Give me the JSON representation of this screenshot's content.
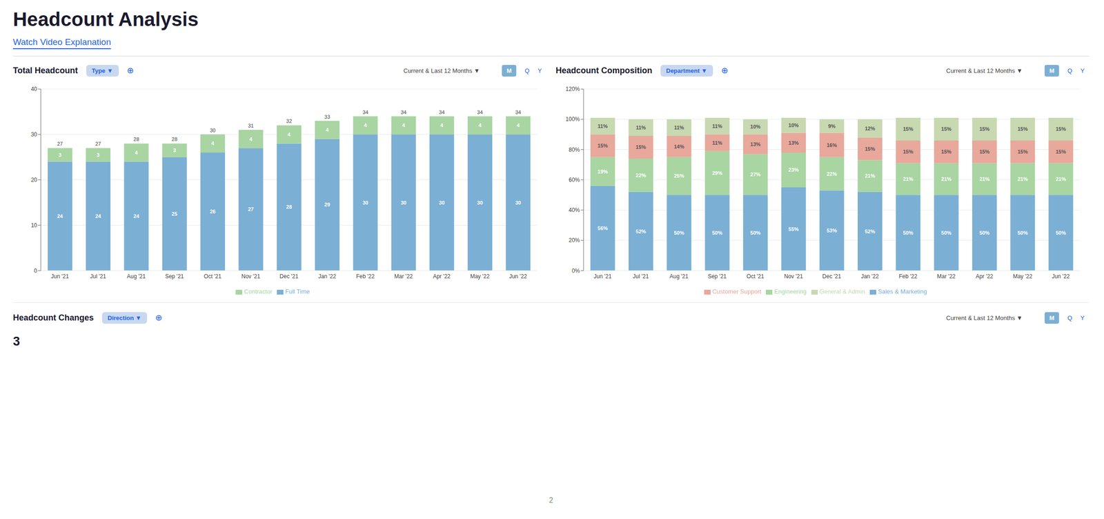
{
  "title": "Headcount Analysis",
  "subtitle": "Watch Video Explanation",
  "annotations": [
    "Headcount Changes",
    "Direction ▼",
    "⊕",
    "Current & Last 12 Months ▼",
    "M",
    "Q",
    "Y",
    "3",
    "2"
  ],
  "chart_data": [
    {
      "type": "bar",
      "title": "Total Headcount",
      "annotations": [
        "Type ▼",
        "⊕",
        "Current & Last 12 Months ▼",
        "M",
        "Q",
        "Y"
      ],
      "categories": [
        "Jun '21",
        "Jul '21",
        "Aug '21",
        "Sep '21",
        "Oct '21",
        "Nov '21",
        "Dec '21",
        "Jan '22",
        "Feb '22",
        "Mar '22",
        "Apr '22",
        "May '22",
        "Jun '22"
      ],
      "series": [
        {
          "name": "Full Time",
          "color": "#7bafd4",
          "values": [
            24,
            24,
            24,
            25,
            26,
            27,
            28,
            29,
            30,
            30,
            30,
            30,
            30
          ]
        },
        {
          "name": "Contractor",
          "color": "#a8d5a2",
          "values": [
            3,
            3,
            4,
            3,
            4,
            4,
            4,
            4,
            4,
            4,
            4,
            4,
            4
          ]
        }
      ],
      "totals": [
        27,
        27,
        28,
        28,
        30,
        31,
        32,
        33,
        34,
        34,
        34,
        34,
        34
      ],
      "stacked": true,
      "data_labels": true,
      "ylim": [
        0,
        40
      ],
      "yticks": [
        0,
        10,
        20,
        30,
        40
      ],
      "grid": true,
      "legend": "bottom"
    },
    {
      "type": "bar",
      "title": "Headcount Composition",
      "annotations": [
        "Department ▼",
        "⊕",
        "Current & Last 12 Months ▼",
        "M",
        "Q",
        "Y"
      ],
      "categories": [
        "Jun '21",
        "Jul '21",
        "Aug '21",
        "Sep '21",
        "Oct '21",
        "Nov '21",
        "Dec '21",
        "Jan '22",
        "Feb '22",
        "Mar '22",
        "Apr '22",
        "May '22",
        "Jun '22"
      ],
      "series": [
        {
          "name": "Sales & Marketing",
          "color": "#7bafd4",
          "values": [
            56,
            52,
            50,
            50,
            50,
            55,
            53,
            52,
            50,
            50,
            50,
            50,
            50
          ],
          "value_labels": [
            "56%",
            "52%",
            "50%",
            "50%",
            "50%",
            "55%",
            "53%",
            "52%",
            "50%",
            "50%",
            "50%",
            "50%",
            "50%"
          ]
        },
        {
          "name": "Engineering",
          "color": "#a8d5a2",
          "values": [
            19,
            22,
            25,
            29,
            27,
            23,
            22,
            21,
            21,
            21,
            21,
            21,
            21
          ],
          "value_labels": [
            "19%",
            "22%",
            "25%",
            "29%",
            "27%",
            "23%",
            "22%",
            "21%",
            "21%",
            "21%",
            "21%",
            "21%",
            "21%"
          ]
        },
        {
          "name": "Customer Support",
          "color": "#e8a89c",
          "values": [
            15,
            15,
            14,
            11,
            13,
            13,
            16,
            15,
            15,
            15,
            15,
            15,
            15
          ],
          "value_labels": [
            "15%",
            "15%",
            "14%",
            "11%",
            "13%",
            "13%",
            "16%",
            "15%",
            "15%",
            "15%",
            "15%",
            "15%",
            "15%"
          ]
        },
        {
          "name": "General & Admin",
          "color": "#c8d8b0",
          "values": [
            11,
            11,
            11,
            11,
            10,
            10,
            9,
            12,
            15,
            15,
            15,
            15,
            15
          ],
          "value_labels": [
            "11%",
            "11%",
            "11%",
            "11%",
            "10%",
            "10%",
            "9%",
            "12%",
            "15%",
            "15%",
            "15%",
            "15%",
            "15%"
          ]
        }
      ],
      "stacked": true,
      "data_labels": true,
      "ylim": [
        0,
        120
      ],
      "yticks": [
        {
          "value": 0,
          "label": "0%"
        },
        {
          "value": 20,
          "label": "20%"
        },
        {
          "value": 40,
          "label": "40%"
        },
        {
          "value": 60,
          "label": "60%"
        },
        {
          "value": 80,
          "label": "80%"
        },
        {
          "value": 100,
          "label": "100%"
        },
        {
          "value": 120,
          "label": "120%"
        }
      ],
      "grid": true,
      "legend": "bottom"
    }
  ]
}
